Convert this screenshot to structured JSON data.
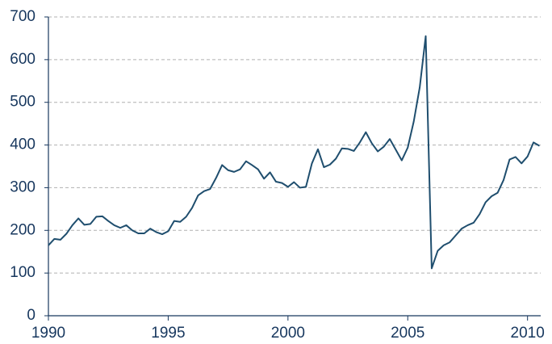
{
  "chart_data": {
    "type": "line",
    "x": [
      1990,
      1990.25,
      1990.5,
      1990.75,
      1991,
      1991.25,
      1991.5,
      1991.75,
      1992,
      1992.25,
      1992.5,
      1992.75,
      1993,
      1993.25,
      1993.5,
      1993.75,
      1994,
      1994.25,
      1994.5,
      1994.75,
      1995,
      1995.25,
      1995.5,
      1995.75,
      1996,
      1996.25,
      1996.5,
      1996.75,
      1997,
      1997.25,
      1997.5,
      1997.75,
      1998,
      1998.25,
      1998.5,
      1998.75,
      1999,
      1999.25,
      1999.5,
      1999.75,
      2000,
      2000.25,
      2000.5,
      2000.75,
      2001,
      2001.25,
      2001.5,
      2001.75,
      2002,
      2002.25,
      2002.5,
      2002.75,
      2003,
      2003.25,
      2003.5,
      2003.75,
      2004,
      2004.25,
      2004.5,
      2004.75,
      2005,
      2005.25,
      2005.5,
      2005.75,
      2006,
      2006.25,
      2006.5,
      2006.75,
      2007,
      2007.25,
      2007.5,
      2007.75,
      2008,
      2008.25,
      2008.5,
      2008.75,
      2009,
      2009.25,
      2009.5,
      2009.75,
      2010,
      2010.25,
      2010.5
    ],
    "series": [
      {
        "color": "#1f4e6e",
        "values": [
          165,
          180,
          178,
          192,
          212,
          228,
          213,
          215,
          232,
          233,
          222,
          212,
          206,
          212,
          200,
          193,
          193,
          204,
          196,
          191,
          198,
          222,
          220,
          232,
          253,
          282,
          292,
          297,
          323,
          353,
          341,
          337,
          343,
          362,
          353,
          343,
          321,
          336,
          314,
          311,
          302,
          313,
          300,
          302,
          357,
          390,
          348,
          354,
          368,
          392,
          391,
          386,
          406,
          430,
          404,
          385,
          396,
          414,
          389,
          364,
          394,
          455,
          535,
          655,
          111,
          152,
          165,
          172,
          188,
          204,
          212,
          218,
          238,
          266,
          280,
          288,
          318,
          366,
          372,
          357,
          373,
          406,
          398
        ]
      }
    ],
    "xlim": [
      1990,
      2010.55
    ],
    "xticks": [
      1990,
      1995,
      2000,
      2005,
      2010
    ],
    "ylim": [
      0,
      700
    ],
    "yticks": [
      0,
      100,
      200,
      300,
      400,
      500,
      600,
      700
    ],
    "grid": true
  }
}
